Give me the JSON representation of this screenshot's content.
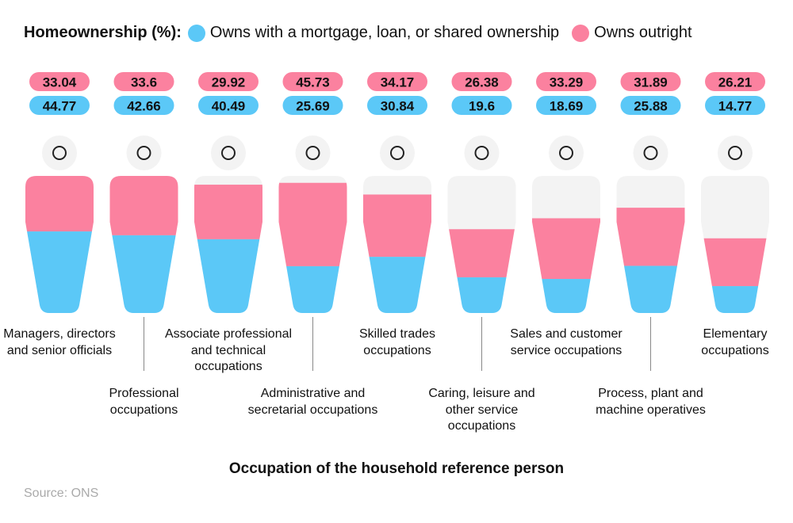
{
  "chart_data": {
    "type": "figure-stack",
    "legend_title": "Homeownership (%):",
    "x_label": "Occupation of the household reference person",
    "source": "Source: ONS",
    "categories": [
      "Managers, directors and senior officials",
      "Professional occupations",
      "Associate professional and technical occupations",
      "Administrative and secretarial occupations",
      "Skilled trades occupations",
      "Caring, leisure and other service occupations",
      "Sales and customer service occupations",
      "Process, plant and machine operatives",
      "Elementary occupations"
    ],
    "series": [
      {
        "name": "Owns with a mortgage, loan, or shared ownership",
        "color": "#5bc8f7",
        "values": [
          44.77,
          42.66,
          40.49,
          25.69,
          30.84,
          19.6,
          18.69,
          25.88,
          14.77
        ]
      },
      {
        "name": "Owns outright",
        "color": "#fb819f",
        "values": [
          33.04,
          33.6,
          29.92,
          45.73,
          34.17,
          26.38,
          33.29,
          31.89,
          26.21
        ]
      }
    ],
    "ylim": [
      0,
      100
    ]
  }
}
